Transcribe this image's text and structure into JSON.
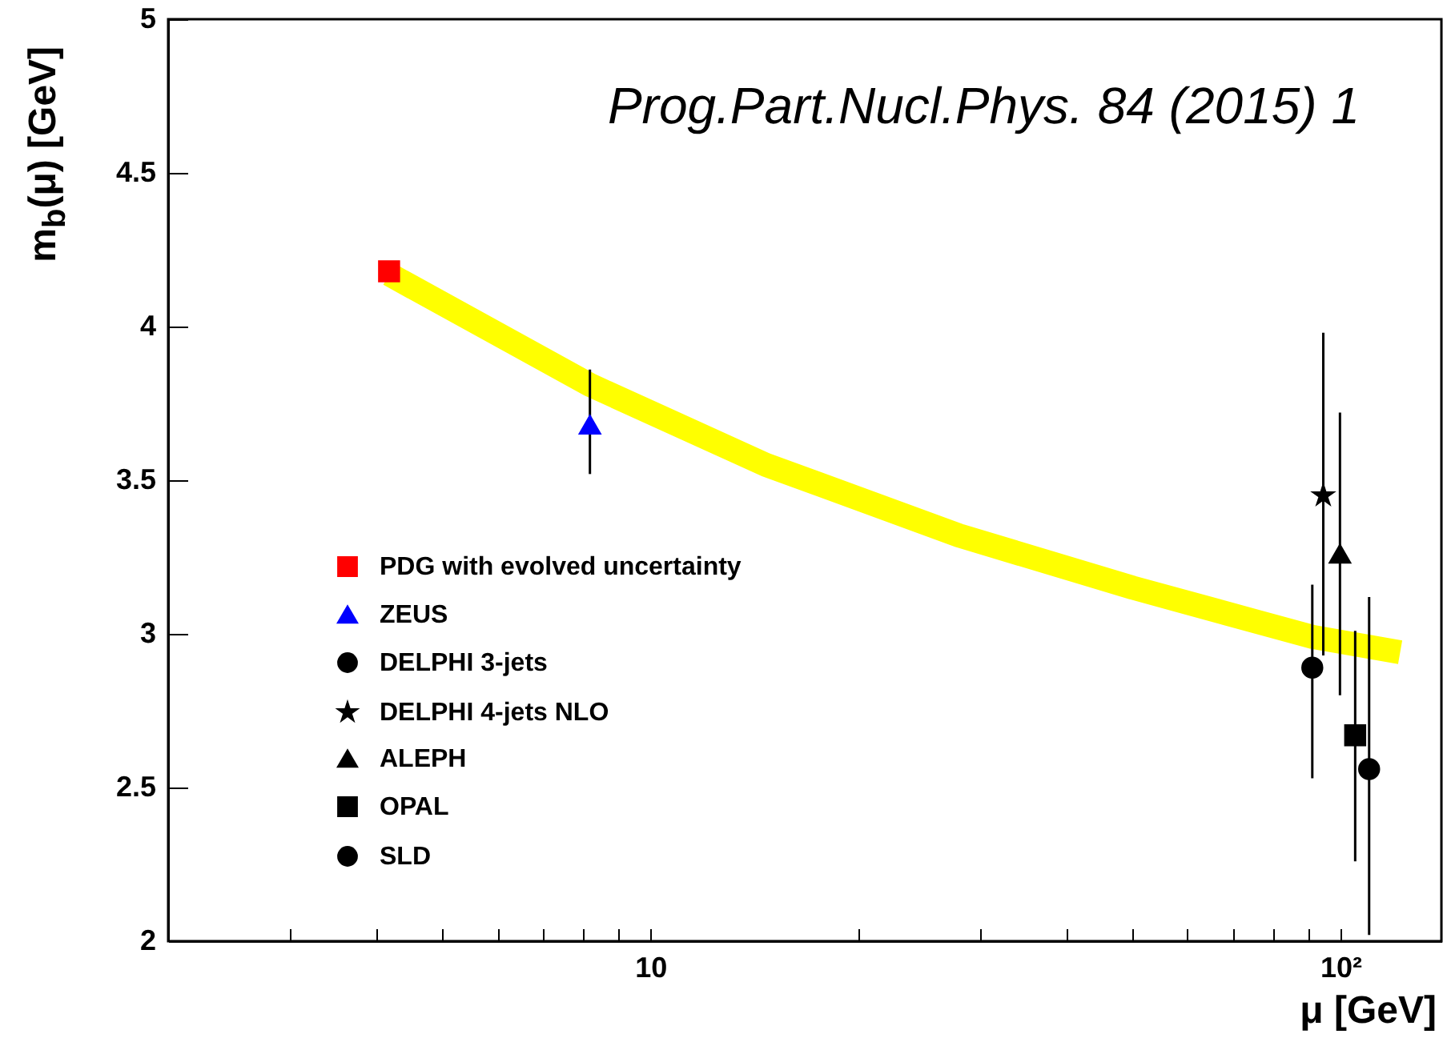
{
  "chart_data": {
    "type": "scatter",
    "xlabel": "μ [GeV]",
    "ylabel": "m$_{b}$(μ) [GeV]",
    "annotations": [
      "Prog.Part.Nucl.Phys. 84 (2015) 1"
    ],
    "log": "x",
    "legend": "left",
    "xlim": [
      2,
      140
    ],
    "ylim": [
      2,
      5
    ],
    "xticks": [
      {
        "value": 3,
        "label": null
      },
      {
        "value": 4,
        "label": null
      },
      {
        "value": 5,
        "label": null
      },
      {
        "value": 6,
        "label": null
      },
      {
        "value": 7,
        "label": null
      },
      {
        "value": 8,
        "label": null
      },
      {
        "value": 9,
        "label": null
      },
      10,
      {
        "value": 20,
        "label": null
      },
      {
        "value": 30,
        "label": null
      },
      {
        "value": 40,
        "label": null
      },
      {
        "value": 50,
        "label": null
      },
      {
        "value": 60,
        "label": null
      },
      {
        "value": 70,
        "label": null
      },
      {
        "value": 80,
        "label": null
      },
      {
        "value": 90,
        "label": null
      },
      {
        "value": 100,
        "label": "10²"
      }
    ],
    "yticks": [
      2,
      2.5,
      3,
      3.5,
      4,
      4.5,
      5
    ],
    "series": [
      {
        "type": "line",
        "color": "#ffff00",
        "x": [
          4.18,
          8.17,
          14.7,
          28,
          50,
          91,
          122
        ],
        "values": [
          4.17,
          3.81,
          3.55,
          3.32,
          3.15,
          2.99,
          2.94
        ]
      },
      {
        "name": "PDG with evolved uncertainty",
        "color": "#ff0000",
        "marker": "square",
        "x": [
          4.18
        ],
        "values": [
          4.18
        ]
      },
      {
        "name": "ZEUS",
        "color": "#0000ff",
        "marker": "triangle",
        "x": [
          8.17
        ],
        "values": [
          3.68
        ],
        "errors": [
          [
            3.52,
            3.86
          ]
        ]
      },
      {
        "name": "DELPHI 3-jets",
        "color": "#000000",
        "marker": "circle",
        "x": [
          91
        ],
        "values": [
          2.89
        ],
        "errors": [
          [
            2.53,
            3.16
          ]
        ]
      },
      {
        "name": "DELPHI 4-jets NLO",
        "color": "#000000",
        "marker": "star",
        "x": [
          94.4
        ],
        "values": [
          3.45
        ],
        "errors": [
          [
            2.93,
            3.98
          ]
        ]
      },
      {
        "name": "ALEPH",
        "color": "#000000",
        "marker": "triangle",
        "x": [
          99.8
        ],
        "values": [
          3.26
        ],
        "errors": [
          [
            2.8,
            3.72
          ]
        ]
      },
      {
        "name": "OPAL",
        "color": "#000000",
        "marker": "square",
        "x": [
          105
        ],
        "values": [
          2.67
        ],
        "errors": [
          [
            2.26,
            3.01
          ]
        ]
      },
      {
        "name": "SLD",
        "color": "#000000",
        "marker": "circle",
        "x": [
          110
        ],
        "values": [
          2.56
        ],
        "errors": [
          [
            2.02,
            3.12
          ]
        ]
      }
    ]
  }
}
